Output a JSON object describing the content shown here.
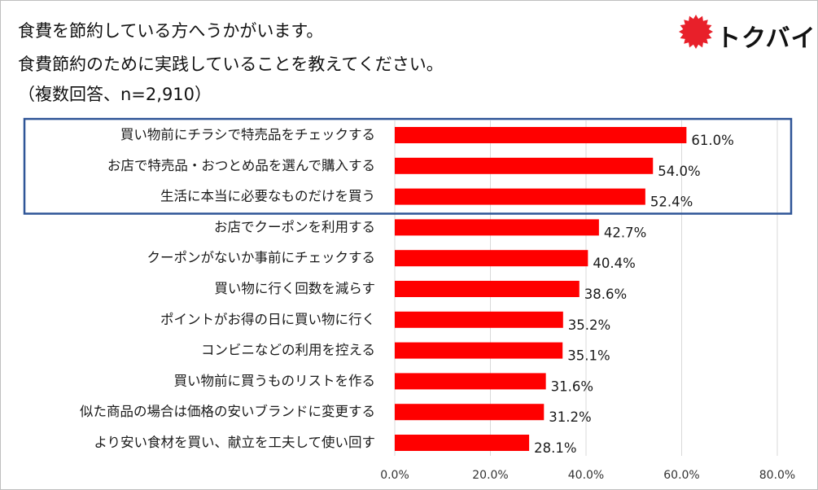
{
  "header": {
    "title_line1": "食費を節約している方へうかがいます。",
    "title_line2": "食費節約のために実践していることを教えてください。",
    "subtitle": "（複数回答、n=2,910）"
  },
  "brand": {
    "logo_text": "トクバイ",
    "logo_color": "#e8202a"
  },
  "colors": {
    "bar": "#ff0000",
    "highlight_box": "#2f5597",
    "grid": "#d9d9d9"
  },
  "chart_data": {
    "type": "bar",
    "orientation": "horizontal",
    "categories": [
      "買い物前にチラシで特売品をチェックする",
      "お店で特売品・おつとめ品を選んで購入する",
      "生活に本当に必要なものだけを買う",
      "お店でクーポンを利用する",
      "クーポンがないか事前にチェックする",
      "買い物に行く回数を減らす",
      "ポイントがお得の日に買い物に行く",
      "コンビニなどの利用を控える",
      "買い物前に買うものリストを作る",
      "似た商品の場合は価格の安いブランドに変更する",
      "より安い食材を買い、献立を工夫して使い回す"
    ],
    "values": [
      61.0,
      54.0,
      52.4,
      42.7,
      40.4,
      38.6,
      35.2,
      35.1,
      31.6,
      31.2,
      28.1
    ],
    "value_labels": [
      "61.0%",
      "54.0%",
      "52.4%",
      "42.7%",
      "40.4%",
      "38.6%",
      "35.2%",
      "35.1%",
      "31.6%",
      "31.2%",
      "28.1%"
    ],
    "xlim": [
      0,
      80
    ],
    "ticks": [
      0,
      20,
      40,
      60,
      80
    ],
    "tick_labels": [
      "0.0%",
      "20.0%",
      "40.0%",
      "60.0%",
      "80.0%"
    ],
    "grid": true,
    "highlighted_top_n": 3
  }
}
